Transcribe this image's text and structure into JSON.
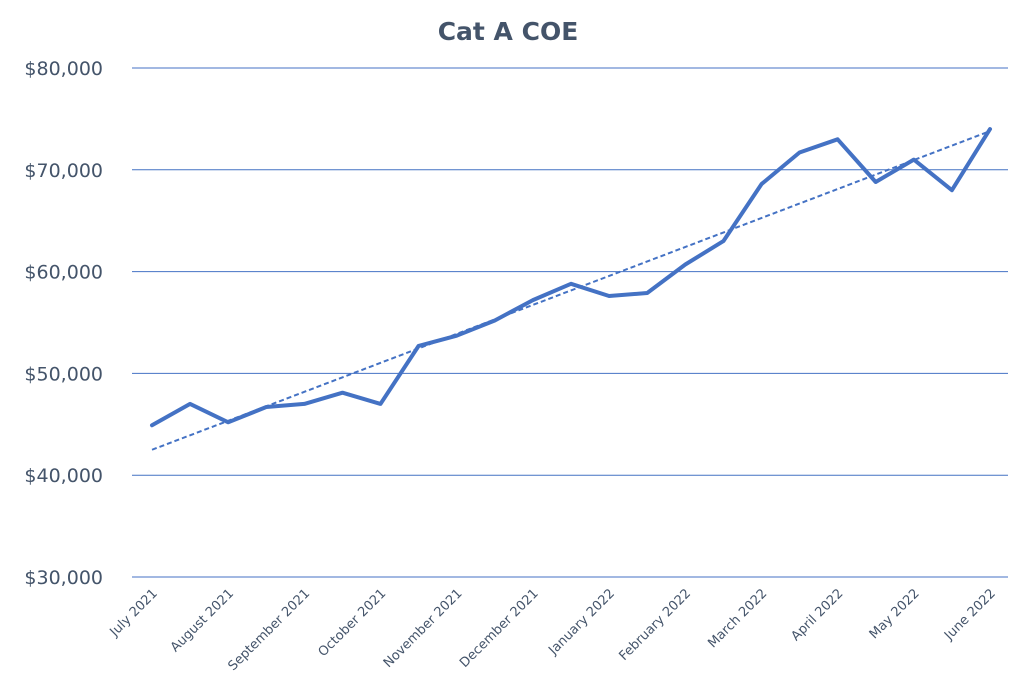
{
  "chart_data": {
    "type": "line",
    "title": "Cat A COE",
    "xlabel": "",
    "ylabel": "",
    "ylim": [
      30000,
      80000
    ],
    "y_ticks": [
      {
        "value": 80000,
        "label": "$80,000"
      },
      {
        "value": 70000,
        "label": "$70,000"
      },
      {
        "value": 60000,
        "label": "$60,000"
      },
      {
        "value": 50000,
        "label": "$50,000"
      },
      {
        "value": 40000,
        "label": "$40,000"
      },
      {
        "value": 30000,
        "label": "$30,000"
      }
    ],
    "x_tick_labels": [
      "July 2021",
      "August 2021",
      "September 2021",
      "October 2021",
      "November 2021",
      "December 2021",
      "January 2022",
      "February 2022",
      "March 2022",
      "April 2022",
      "May 2022",
      "June 2022"
    ],
    "grid": true,
    "legend": "none",
    "series": [
      {
        "style": "solid",
        "color": "#4472c4",
        "values": [
          44900,
          47000,
          45200,
          46700,
          47000,
          48100,
          47000,
          52700,
          53700,
          55200,
          57200,
          58800,
          57600,
          57900,
          60700,
          63000,
          68600,
          71700,
          73000,
          68800,
          71000,
          68000,
          74000
        ]
      },
      {
        "style": "dashed",
        "color": "#4472c4",
        "type": "linear-trendline",
        "values": [
          42500,
          73800
        ]
      }
    ]
  }
}
